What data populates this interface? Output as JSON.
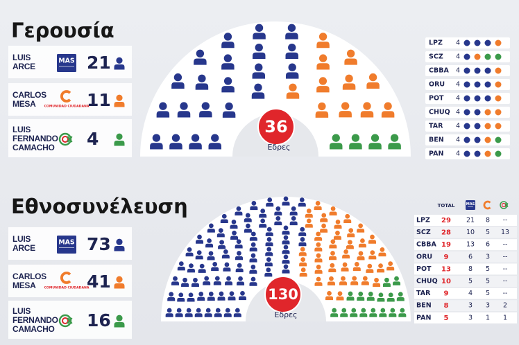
{
  "chart_data": [
    {
      "type": "parliament",
      "title": "Γερουσία",
      "total": 36,
      "total_label": "Εδρες",
      "series": [
        {
          "name": "LUIS ARCE",
          "logo": "MAS",
          "color": "#27378c",
          "value": 21
        },
        {
          "name": "CARLOS MESA",
          "logo_caption": "COMUNIDAD CIUDADANA",
          "color": "#f07c2c",
          "value": 11
        },
        {
          "name": "LUIS FERNANDO CAMACHO",
          "color": "#3b9a4a",
          "value": 4
        }
      ],
      "breakdown": {
        "rows": [
          {
            "label": "LPZ",
            "total": 4,
            "values": [
              3,
              1,
              0
            ]
          },
          {
            "label": "SCZ",
            "total": 4,
            "values": [
              1,
              1,
              2
            ]
          },
          {
            "label": "CBBA",
            "total": 4,
            "values": [
              3,
              1,
              0
            ]
          },
          {
            "label": "ORU",
            "total": 4,
            "values": [
              3,
              1,
              0
            ]
          },
          {
            "label": "POT",
            "total": 4,
            "values": [
              3,
              1,
              0
            ]
          },
          {
            "label": "CHUQ",
            "total": 4,
            "values": [
              2,
              2,
              0
            ]
          },
          {
            "label": "TAR",
            "total": 4,
            "values": [
              2,
              2,
              0
            ]
          },
          {
            "label": "BEN",
            "total": 4,
            "values": [
              2,
              1,
              1
            ]
          },
          {
            "label": "PAN",
            "total": 4,
            "values": [
              2,
              1,
              1
            ]
          }
        ]
      }
    },
    {
      "type": "parliament",
      "title": "Εθνοσυνέλευση",
      "total": 130,
      "total_label": "Εδρες",
      "series": [
        {
          "name": "LUIS ARCE",
          "logo": "MAS",
          "color": "#27378c",
          "value": 73
        },
        {
          "name": "CARLOS MESA",
          "logo_caption": "COMUNIDAD CIUDADANA",
          "color": "#f07c2c",
          "value": 41
        },
        {
          "name": "LUIS FERNANDO CAMACHO",
          "color": "#3b9a4a",
          "value": 16
        }
      ],
      "breakdown": {
        "header": "TOTAL",
        "rows": [
          {
            "label": "LPZ",
            "total": 29,
            "values": [
              21,
              8,
              "--"
            ]
          },
          {
            "label": "SCZ",
            "total": 28,
            "values": [
              10,
              5,
              13
            ]
          },
          {
            "label": "CBBA",
            "total": 19,
            "values": [
              13,
              6,
              "--"
            ]
          },
          {
            "label": "ORU",
            "total": 9,
            "values": [
              6,
              3,
              "--"
            ]
          },
          {
            "label": "POT",
            "total": 13,
            "values": [
              8,
              5,
              "--"
            ]
          },
          {
            "label": "CHUQ",
            "total": 10,
            "values": [
              5,
              5,
              "--"
            ]
          },
          {
            "label": "TAR",
            "total": 9,
            "values": [
              4,
              5,
              "--"
            ]
          },
          {
            "label": "BEN",
            "total": 8,
            "values": [
              3,
              3,
              2
            ]
          },
          {
            "label": "PAN",
            "total": 5,
            "values": [
              3,
              1,
              1
            ]
          }
        ]
      }
    }
  ]
}
